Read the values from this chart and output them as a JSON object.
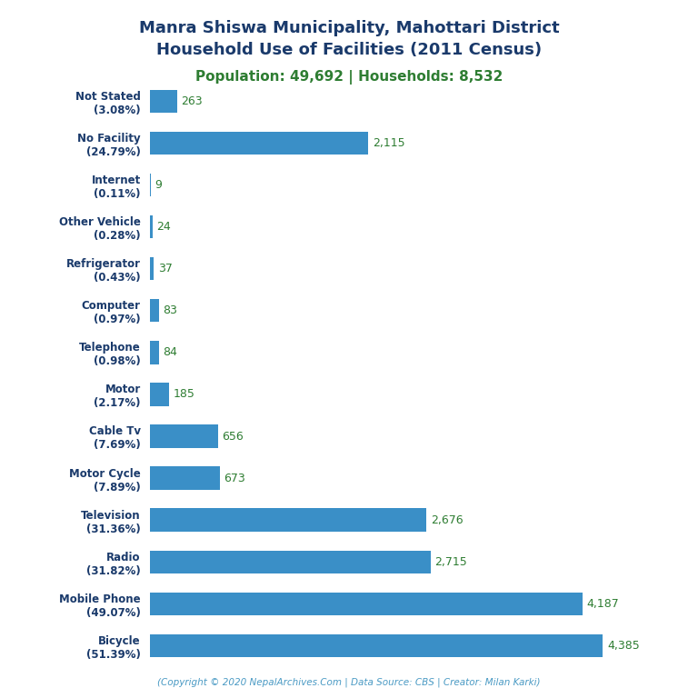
{
  "title_line1": "Manra Shiswa Municipality, Mahottari District",
  "title_line2": "Household Use of Facilities (2011 Census)",
  "subtitle": "Population: 49,692 | Households: 8,532",
  "footer": "(Copyright © 2020 NepalArchives.Com | Data Source: CBS | Creator: Milan Karki)",
  "title_color": "#1a3a6b",
  "subtitle_color": "#2e7d32",
  "footer_color": "#4a9ac4",
  "bar_color": "#3a8fc7",
  "value_color": "#2e7d32",
  "ylabel_color": "#1a3a6b",
  "categories": [
    "Not Stated\n(3.08%)",
    "No Facility\n(24.79%)",
    "Internet\n(0.11%)",
    "Other Vehicle\n(0.28%)",
    "Refrigerator\n(0.43%)",
    "Computer\n(0.97%)",
    "Telephone\n(0.98%)",
    "Motor\n(2.17%)",
    "Cable Tv\n(7.69%)",
    "Motor Cycle\n(7.89%)",
    "Television\n(31.36%)",
    "Radio\n(31.82%)",
    "Mobile Phone\n(49.07%)",
    "Bicycle\n(51.39%)"
  ],
  "values": [
    263,
    2115,
    9,
    24,
    37,
    83,
    84,
    185,
    656,
    673,
    2676,
    2715,
    4187,
    4385
  ],
  "xlim": [
    0,
    4900
  ],
  "background_color": "#ffffff",
  "title_fontsize": 13,
  "subtitle_fontsize": 11,
  "label_fontsize": 8.5,
  "value_fontsize": 9,
  "footer_fontsize": 7.5,
  "bar_height": 0.55
}
